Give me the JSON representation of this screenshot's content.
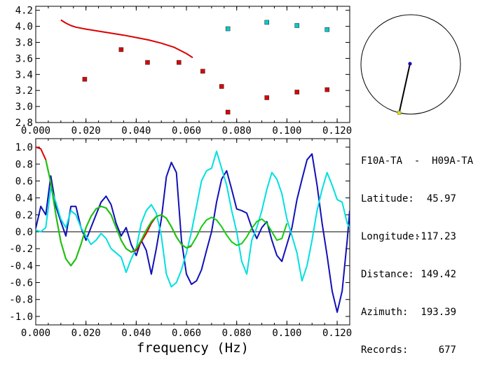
{
  "chart_data": [
    {
      "type": "scatter",
      "xlim": [
        0.0,
        0.125
      ],
      "ylim": [
        2.8,
        4.25
      ],
      "xticks": [
        "0.000",
        "0.020",
        "0.040",
        "0.060",
        "0.080",
        "0.100",
        "0.120"
      ],
      "yticks": [
        "2.8",
        "3.0",
        "3.2",
        "3.4",
        "3.6",
        "3.8",
        "4.0",
        "4.2"
      ],
      "series": [
        {
          "name": "red-points",
          "color": "#dd0000",
          "x": [
            0.0195,
            0.034,
            0.0445,
            0.057,
            0.0665,
            0.074,
            0.0765,
            0.092,
            0.104,
            0.116
          ],
          "y": [
            3.34,
            3.71,
            3.55,
            3.55,
            3.44,
            3.25,
            2.93,
            3.11,
            3.18,
            3.21
          ]
        },
        {
          "name": "cyan-points",
          "color": "#00cccc",
          "x": [
            0.0765,
            0.092,
            0.104,
            0.116
          ],
          "y": [
            3.97,
            4.05,
            4.01,
            3.96
          ]
        },
        {
          "name": "red-curve",
          "color": "#dd0000",
          "mode": "line",
          "x": [
            0.01,
            0.012,
            0.014,
            0.016,
            0.02,
            0.025,
            0.03,
            0.035,
            0.04,
            0.045,
            0.05,
            0.055,
            0.06,
            0.0625
          ],
          "y": [
            4.08,
            4.04,
            4.01,
            3.99,
            3.965,
            3.94,
            3.915,
            3.89,
            3.86,
            3.83,
            3.79,
            3.74,
            3.66,
            3.61
          ]
        }
      ]
    },
    {
      "type": "line",
      "xlim": [
        0.0,
        0.125
      ],
      "ylim": [
        -1.1,
        1.1
      ],
      "xticks": [
        "0.000",
        "0.020",
        "0.040",
        "0.060",
        "0.080",
        "0.100",
        "0.120"
      ],
      "yticks": [
        "1.0",
        "0.8",
        "0.6",
        "0.4",
        "0.2",
        "0.0",
        "-0.2",
        "-0.4",
        "-0.6",
        "-0.8",
        "-1.0"
      ],
      "xlabel": "frequency (Hz)",
      "series": [
        {
          "name": "blue",
          "color": "#1010b8",
          "x": [
            0,
            0.002,
            0.004,
            0.006,
            0.008,
            0.01,
            0.012,
            0.014,
            0.016,
            0.018,
            0.02,
            0.022,
            0.024,
            0.026,
            0.028,
            0.03,
            0.032,
            0.034,
            0.036,
            0.038,
            0.04,
            0.042,
            0.044,
            0.046,
            0.048,
            0.05,
            0.052,
            0.054,
            0.056,
            0.058,
            0.06,
            0.062,
            0.064,
            0.066,
            0.068,
            0.07,
            0.072,
            0.074,
            0.076,
            0.078,
            0.08,
            0.082,
            0.084,
            0.086,
            0.088,
            0.09,
            0.092,
            0.094,
            0.096,
            0.098,
            0.1,
            0.102,
            0.104,
            0.106,
            0.108,
            0.11,
            0.112,
            0.114,
            0.116,
            0.118,
            0.12,
            0.122,
            0.124,
            0.125
          ],
          "y": [
            0.04,
            0.3,
            0.2,
            0.66,
            0.3,
            0.12,
            -0.05,
            0.3,
            0.3,
            0.05,
            -0.1,
            0.05,
            0.2,
            0.35,
            0.42,
            0.32,
            0.1,
            -0.05,
            0.05,
            -0.15,
            -0.28,
            -0.1,
            -0.22,
            -0.5,
            -0.2,
            0.15,
            0.65,
            0.82,
            0.7,
            -0.1,
            -0.5,
            -0.62,
            -0.58,
            -0.45,
            -0.22,
            0.0,
            0.35,
            0.62,
            0.72,
            0.5,
            0.27,
            0.25,
            0.22,
            0.05,
            -0.08,
            0.05,
            0.12,
            -0.1,
            -0.28,
            -0.35,
            -0.15,
            0.05,
            0.38,
            0.62,
            0.85,
            0.92,
            0.55,
            0.1,
            -0.28,
            -0.7,
            -0.95,
            -0.7,
            -0.1,
            0.25
          ]
        },
        {
          "name": "cyan",
          "color": "#00e0e0",
          "x": [
            0,
            0.002,
            0.004,
            0.006,
            0.008,
            0.01,
            0.012,
            0.014,
            0.016,
            0.018,
            0.02,
            0.022,
            0.024,
            0.026,
            0.028,
            0.03,
            0.032,
            0.034,
            0.036,
            0.038,
            0.04,
            0.042,
            0.044,
            0.046,
            0.048,
            0.05,
            0.052,
            0.054,
            0.056,
            0.058,
            0.06,
            0.062,
            0.064,
            0.066,
            0.068,
            0.07,
            0.072,
            0.074,
            0.076,
            0.078,
            0.08,
            0.082,
            0.084,
            0.086,
            0.088,
            0.09,
            0.092,
            0.094,
            0.096,
            0.098,
            0.1,
            0.102,
            0.104,
            0.106,
            0.108,
            0.11,
            0.112,
            0.114,
            0.116,
            0.118,
            0.12,
            0.122,
            0.124,
            0.125
          ],
          "y": [
            0.02,
            0.0,
            0.05,
            0.52,
            0.35,
            0.15,
            0.05,
            0.25,
            0.2,
            0.05,
            -0.05,
            -0.15,
            -0.1,
            -0.02,
            -0.08,
            -0.2,
            -0.25,
            -0.3,
            -0.48,
            -0.32,
            -0.2,
            0.1,
            0.25,
            0.32,
            0.22,
            -0.05,
            -0.5,
            -0.65,
            -0.6,
            -0.45,
            -0.25,
            0.0,
            0.3,
            0.6,
            0.72,
            0.75,
            0.95,
            0.75,
            0.55,
            0.25,
            0.0,
            -0.35,
            -0.5,
            -0.1,
            0.05,
            0.25,
            0.5,
            0.7,
            0.62,
            0.45,
            0.15,
            -0.05,
            -0.25,
            -0.58,
            -0.4,
            -0.1,
            0.25,
            0.5,
            0.7,
            0.55,
            0.38,
            0.35,
            0.1,
            0.05
          ]
        },
        {
          "name": "red",
          "color": "#dd0000",
          "x": [
            0,
            0.002,
            0.004,
            0.006,
            0.008,
            0.01,
            0.012,
            0.014,
            0.016,
            0.018,
            0.02,
            0.022,
            0.024,
            0.026,
            0.028,
            0.03,
            0.032,
            0.034,
            0.036,
            0.038,
            0.04,
            0.042,
            0.044,
            0.046,
            0.048,
            0.05,
            0.052,
            0.054,
            0.056,
            0.058,
            0.06,
            0.062
          ],
          "y": [
            1.0,
            0.98,
            0.85,
            0.58,
            0.2,
            -0.12,
            -0.32,
            -0.4,
            -0.32,
            -0.15,
            0.05,
            0.18,
            0.27,
            0.3,
            0.28,
            0.2,
            0.05,
            -0.1,
            -0.2,
            -0.24,
            -0.22,
            -0.12,
            -0.02,
            0.1,
            0.18,
            0.2,
            0.16,
            0.06,
            -0.06,
            -0.15,
            -0.19,
            -0.17
          ]
        },
        {
          "name": "green",
          "color": "#11cc11",
          "x": [
            0.004,
            0.006,
            0.008,
            0.01,
            0.012,
            0.014,
            0.016,
            0.018,
            0.02,
            0.022,
            0.024,
            0.026,
            0.028,
            0.03,
            0.032,
            0.034,
            0.036,
            0.038,
            0.04,
            0.042,
            0.044,
            0.046,
            0.048,
            0.05,
            0.052,
            0.054,
            0.056,
            0.058,
            0.06,
            0.062,
            0.064,
            0.066,
            0.068,
            0.07,
            0.072,
            0.074,
            0.076,
            0.078,
            0.08,
            0.082,
            0.084,
            0.086,
            0.088,
            0.09,
            0.092,
            0.094,
            0.096,
            0.098,
            0.1
          ],
          "y": [
            0.85,
            0.58,
            0.2,
            -0.12,
            -0.32,
            -0.4,
            -0.32,
            -0.15,
            0.05,
            0.18,
            0.27,
            0.3,
            0.28,
            0.2,
            0.05,
            -0.1,
            -0.2,
            -0.24,
            -0.2,
            -0.1,
            0.02,
            0.12,
            0.18,
            0.2,
            0.16,
            0.06,
            -0.06,
            -0.15,
            -0.19,
            -0.16,
            -0.06,
            0.06,
            0.14,
            0.17,
            0.14,
            0.06,
            -0.04,
            -0.12,
            -0.16,
            -0.14,
            -0.06,
            0.04,
            0.12,
            0.15,
            0.1,
            0.0,
            -0.1,
            -0.08,
            0.1
          ]
        }
      ]
    }
  ],
  "map": {
    "title": "F10A-TA  -  H09A-TA",
    "azimuth_deg": 193.39
  },
  "info": {
    "latitude_label": "Latitude:",
    "latitude": "45.97",
    "longitude_label": "Longitude:",
    "longitude": "-117.23",
    "distance_label": "Distance:",
    "distance": "149.42",
    "azimuth_label": "Azimuth:",
    "azimuth": "193.39",
    "records_label": "Records:",
    "records": "677"
  },
  "colors": {
    "axis": "#000000",
    "station": "#1010b8",
    "target": "#dddd00"
  }
}
